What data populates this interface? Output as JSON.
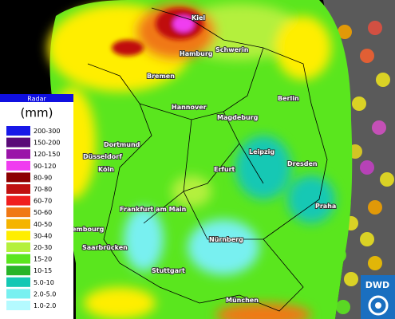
{
  "map": {
    "cities": [
      "Kiel",
      "Hamburg",
      "Schwerin",
      "Bremen",
      "Hannover",
      "Berlin",
      "Magdeburg",
      "Dortmund",
      "Düsseldorf",
      "Köln",
      "Leipzig",
      "Dresden",
      "Erfurt",
      "Frankfurt am Main",
      "Praha",
      "Nürnberg",
      "embourg",
      "Saarbrücken",
      "Stuttgart",
      "München"
    ]
  },
  "legend": {
    "title": "Radar",
    "unit": "(mm)",
    "items": [
      {
        "label": "200-300",
        "color": "#1818e8"
      },
      {
        "label": "150-200",
        "color": "#5a0a78"
      },
      {
        "label": "120-150",
        "color": "#9a14a8"
      },
      {
        "label": "90-120",
        "color": "#f03cf0"
      },
      {
        "label": "80-90",
        "color": "#8c0000"
      },
      {
        "label": "70-80",
        "color": "#c01010"
      },
      {
        "label": "60-70",
        "color": "#f01e1e"
      },
      {
        "label": "50-60",
        "color": "#f07814"
      },
      {
        "label": "40-50",
        "color": "#f5b400"
      },
      {
        "label": "30-40",
        "color": "#ffee00"
      },
      {
        "label": "20-30",
        "color": "#b4f03c"
      },
      {
        "label": "15-20",
        "color": "#5ae61e"
      },
      {
        "label": "10-15",
        "color": "#28b428"
      },
      {
        "label": "5.0-10",
        "color": "#14c8b4"
      },
      {
        "label": "2.0-5.0",
        "color": "#78f0f0"
      },
      {
        "label": "1.0-2.0",
        "color": "#b4faff"
      }
    ]
  },
  "logo": "DWD"
}
